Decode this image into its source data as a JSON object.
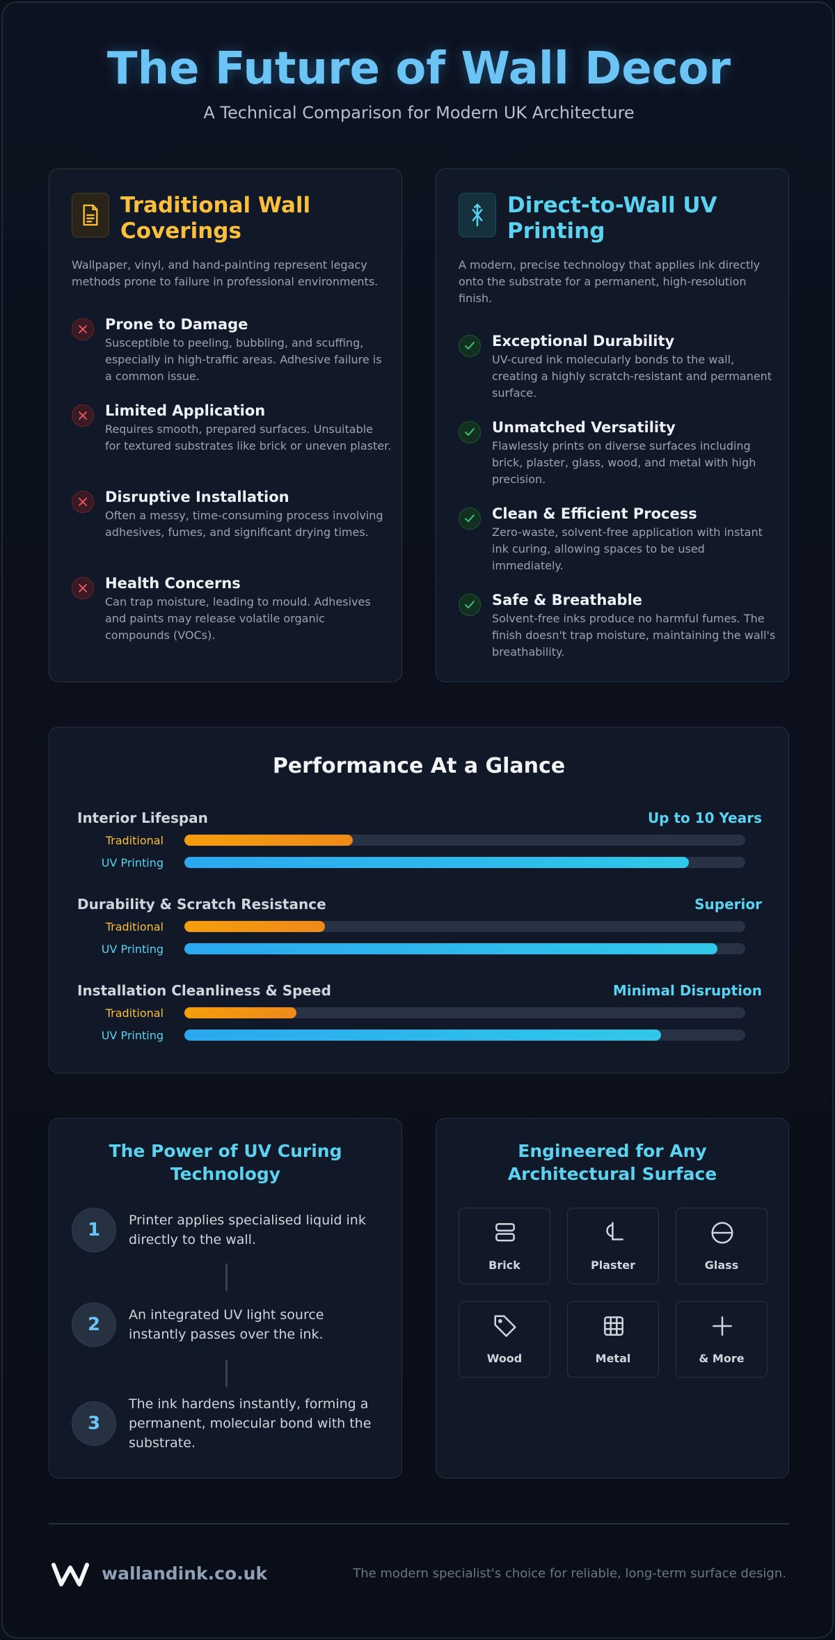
{
  "header": {
    "title": "The Future of Wall Decor",
    "subtitle": "A Technical Comparison for Modern UK Architecture"
  },
  "traditional": {
    "icon": "document-icon",
    "title": "Traditional Wall Coverings",
    "description": "Wallpaper, vinyl, and hand-painting represent legacy methods prone to failure in professional environments.",
    "features": [
      {
        "title": "Prone to Damage",
        "desc": "Susceptible to peeling, bubbling, and scuffing, especially in high-traffic areas. Adhesive failure is a common issue."
      },
      {
        "title": "Limited Application",
        "desc": "Requires smooth, prepared surfaces. Unsuitable for textured substrates like brick or uneven plaster."
      },
      {
        "title": "Disruptive Installation",
        "desc": "Often a messy, time-consuming process involving adhesives, fumes, and significant drying times."
      },
      {
        "title": "Health Concerns",
        "desc": "Can trap moisture, leading to mould. Adhesives and paints may release volatile organic compounds (VOCs)."
      }
    ]
  },
  "uv": {
    "icon": "uv-printer-icon",
    "title": "Direct-to-Wall UV Printing",
    "description": "A modern, precise technology that applies ink directly onto the substrate for a permanent, high-resolution finish.",
    "features": [
      {
        "title": "Exceptional Durability",
        "desc": "UV-cured ink molecularly bonds to the wall, creating a highly scratch-resistant and permanent surface."
      },
      {
        "title": "Unmatched Versatility",
        "desc": "Flawlessly prints on diverse surfaces including brick, plaster, glass, wood, and metal with high precision."
      },
      {
        "title": "Clean & Efficient Process",
        "desc": "Zero-waste, solvent-free application with instant ink curing, allowing spaces to be used immediately."
      },
      {
        "title": "Safe & Breathable",
        "desc": "Solvent-free inks produce no harmful fumes. The finish doesn't trap moisture, maintaining the wall's breathability."
      }
    ]
  },
  "performance": {
    "title": "Performance At a Glance",
    "trad_label": "Traditional",
    "uv_label": "UV Printing",
    "metrics": [
      {
        "label": "Interior Lifespan",
        "value": "Up to 10 Years",
        "traditional": 0.3,
        "uv": 0.9
      },
      {
        "label": "Durability & Scratch Resistance",
        "value": "Superior",
        "traditional": 0.25,
        "uv": 0.95
      },
      {
        "label": "Installation Cleanliness & Speed",
        "value": "Minimal Disruption",
        "traditional": 0.2,
        "uv": 0.85
      }
    ]
  },
  "curing": {
    "title": "The Power of UV Curing Technology",
    "steps": [
      {
        "num": "1",
        "text": "Printer applies specialised liquid ink directly to the wall."
      },
      {
        "num": "2",
        "text": "An integrated UV light source instantly passes over the ink."
      },
      {
        "num": "3",
        "text": "The ink hardens instantly, forming a permanent, molecular bond with the substrate."
      }
    ]
  },
  "surfaces": {
    "title": "Engineered for Any Architectural Surface",
    "items": [
      {
        "label": "Brick",
        "icon": "brick-icon"
      },
      {
        "label": "Plaster",
        "icon": "plaster-icon"
      },
      {
        "label": "Glass",
        "icon": "glass-icon"
      },
      {
        "label": "Wood",
        "icon": "tag-icon"
      },
      {
        "label": "Metal",
        "icon": "grid-icon"
      },
      {
        "label": "& More",
        "icon": "plus-icon"
      }
    ]
  },
  "footer": {
    "logo": "W",
    "site": "wallandink.co.uk",
    "tagline": "The modern specialist's choice for reliable, long-term surface design."
  },
  "colors": {
    "traditional": "#fbbf3c",
    "uv": "#5ad2f0",
    "background": "#0b0f19"
  }
}
